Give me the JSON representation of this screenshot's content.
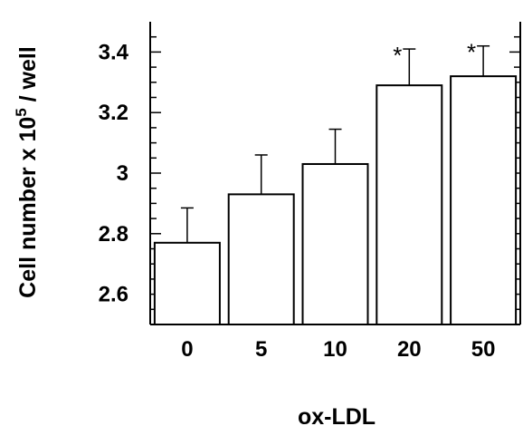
{
  "chart_data": {
    "type": "bar",
    "categories": [
      "0",
      "5",
      "10",
      "20",
      "50"
    ],
    "values": [
      2.77,
      2.93,
      3.03,
      3.29,
      3.32
    ],
    "errors": [
      0.115,
      0.13,
      0.115,
      0.12,
      0.1
    ],
    "significance": [
      "",
      "",
      "",
      "*",
      "*"
    ],
    "xlabel": "ox-LDL",
    "ylabel_main": "Cell number x 10",
    "ylabel_sup": "5",
    "ylabel_tail": " / well",
    "ylim": [
      2.5,
      3.5
    ],
    "y_ticks": [
      2.6,
      2.8,
      3,
      3.2,
      3.4
    ],
    "y_tick_labels": [
      "2.6",
      "2.8",
      "3",
      "3.2",
      "3.4"
    ],
    "bar_color": "#ffffff",
    "stroke_color": "#000000",
    "grid": false,
    "legend": "none"
  }
}
